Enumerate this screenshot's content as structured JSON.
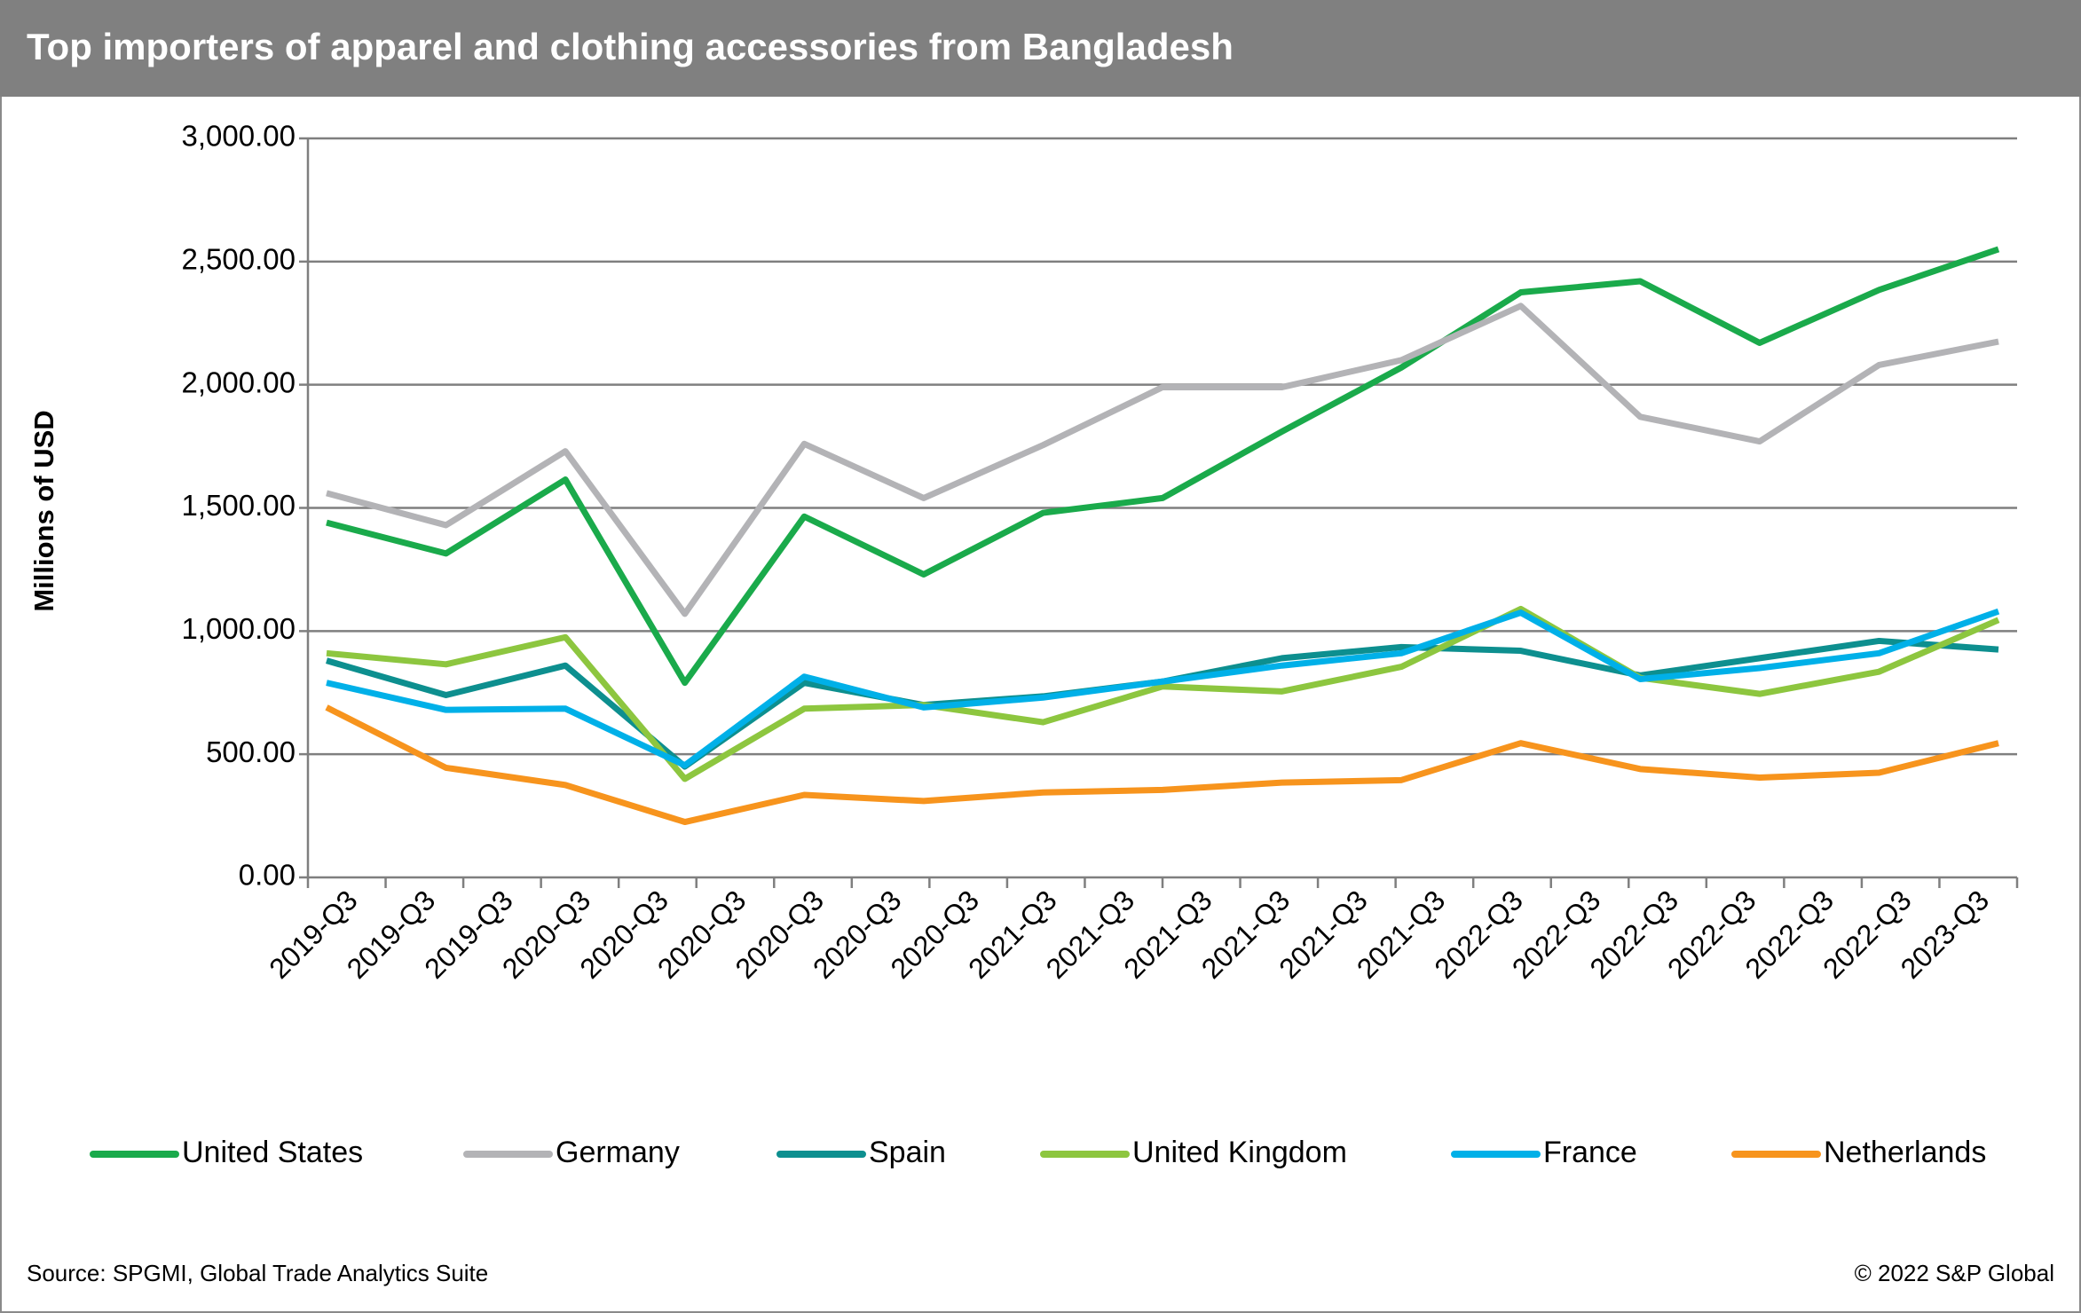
{
  "chart_data": {
    "type": "line",
    "title": "Top importers of apparel and clothing accessories from Bangladesh",
    "y_label": "Millions of USD",
    "source": "Source: SPGMI, Global Trade Analytics Suite",
    "copyright": "© 2022 S&P Global",
    "xtick_labels": [
      "2019-Q3",
      "2019-Q3",
      "2019-Q3",
      "2020-Q3",
      "2020-Q3",
      "2020-Q3",
      "2020-Q3",
      "2020-Q3",
      "2020-Q3",
      "2021-Q3",
      "2021-Q3",
      "2021-Q3",
      "2021-Q3",
      "2021-Q3",
      "2021-Q3",
      "2022-Q3",
      "2022-Q3",
      "2022-Q3",
      "2022-Q3",
      "2022-Q3",
      "2022-Q3",
      "2023-Q3"
    ],
    "ylim": [
      0,
      3000
    ],
    "yticks": [
      {
        "value": 0,
        "label": "0.00"
      },
      {
        "value": 500,
        "label": "500.00"
      },
      {
        "value": 1000,
        "label": "1,000.00"
      },
      {
        "value": 1500,
        "label": "1,500.00"
      },
      {
        "value": 2000,
        "label": "2,000.00"
      },
      {
        "value": 2500,
        "label": "2,500.00"
      },
      {
        "value": 3000,
        "label": "3,000.00"
      }
    ],
    "grid": true,
    "legend": "bottom",
    "series": [
      {
        "name": "United States",
        "color": "#1aaa4b",
        "values": [
          1440,
          1315,
          1615,
          790,
          1465,
          1230,
          1480,
          1540,
          1810,
          2070,
          2375,
          2420,
          2170,
          2385,
          2550
        ]
      },
      {
        "name": "Germany",
        "color": "#b3b3b6",
        "values": [
          1560,
          1430,
          1730,
          1070,
          1760,
          1540,
          1755,
          1990,
          1990,
          2100,
          2320,
          1870,
          1770,
          2080,
          2175
        ]
      },
      {
        "name": "Spain",
        "color": "#0d8f8f",
        "values": [
          880,
          740,
          860,
          450,
          790,
          700,
          735,
          795,
          890,
          935,
          920,
          820,
          890,
          960,
          925
        ]
      },
      {
        "name": "United Kingdom",
        "color": "#8dc63f",
        "values": [
          910,
          865,
          975,
          400,
          685,
          700,
          630,
          775,
          755,
          855,
          1090,
          810,
          745,
          835,
          1045
        ]
      },
      {
        "name": "France",
        "color": "#00b0e8",
        "values": [
          790,
          680,
          685,
          455,
          815,
          690,
          730,
          795,
          860,
          910,
          1075,
          805,
          850,
          910,
          1080
        ]
      },
      {
        "name": "Netherlands",
        "color": "#f7941d",
        "values": [
          690,
          445,
          375,
          225,
          335,
          310,
          345,
          355,
          385,
          395,
          545,
          440,
          405,
          425,
          545
        ]
      }
    ]
  }
}
